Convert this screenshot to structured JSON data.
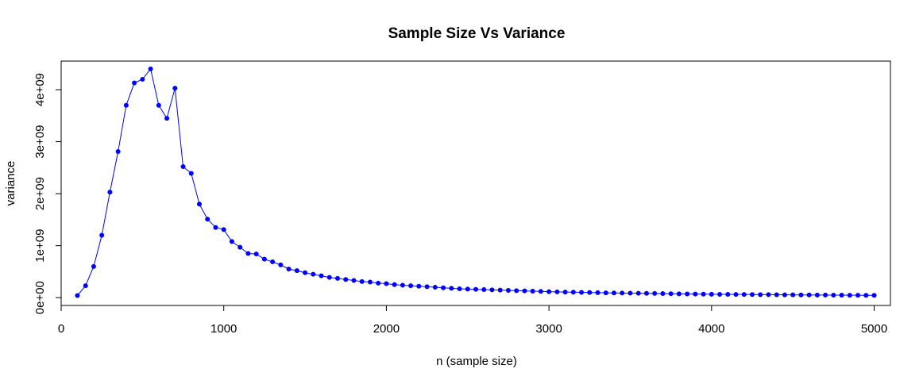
{
  "chart_data": {
    "type": "line",
    "title": "Sample Size Vs Variance",
    "xlabel": "n (sample size)",
    "ylabel": "variance",
    "xlim": [
      0,
      5100
    ],
    "ylim": [
      -150000000,
      4550000000
    ],
    "xticks": [
      0,
      1000,
      2000,
      3000,
      4000,
      5000
    ],
    "xtick_labels": [
      "0",
      "1000",
      "2000",
      "3000",
      "4000",
      "5000"
    ],
    "yticks": [
      0,
      1000000000,
      2000000000,
      3000000000,
      4000000000
    ],
    "ytick_labels": [
      "0e+00",
      "1e+09",
      "2e+09",
      "3e+09",
      "4e+09"
    ],
    "grid": false,
    "legend": "none",
    "series": [
      {
        "color": "#0000ff",
        "marker": "filled-circle",
        "x": [
          100,
          150,
          200,
          250,
          300,
          350,
          400,
          450,
          500,
          550,
          600,
          650,
          700,
          750,
          800,
          850,
          900,
          950,
          1000,
          1050,
          1100,
          1150,
          1200,
          1250,
          1300,
          1350,
          1400,
          1450,
          1500,
          1550,
          1600,
          1650,
          1700,
          1750,
          1800,
          1850,
          1900,
          1950,
          2000,
          2050,
          2100,
          2150,
          2200,
          2250,
          2300,
          2350,
          2400,
          2450,
          2500,
          2550,
          2600,
          2650,
          2700,
          2750,
          2800,
          2850,
          2900,
          2950,
          3000,
          3050,
          3100,
          3150,
          3200,
          3250,
          3300,
          3350,
          3400,
          3450,
          3500,
          3550,
          3600,
          3650,
          3700,
          3750,
          3800,
          3850,
          3900,
          3950,
          4000,
          4050,
          4100,
          4150,
          4200,
          4250,
          4300,
          4350,
          4400,
          4450,
          4500,
          4550,
          4600,
          4650,
          4700,
          4750,
          4800,
          4850,
          4900,
          4950,
          5000
        ],
        "y": [
          40000000,
          230000000,
          600000000,
          1200000000,
          2030000000,
          2810000000,
          3700000000,
          4130000000,
          4200000000,
          4400000000,
          3700000000,
          3450000000,
          4030000000,
          2520000000,
          2390000000,
          1800000000,
          1510000000,
          1350000000,
          1310000000,
          1080000000,
          970000000,
          850000000,
          840000000,
          740000000,
          690000000,
          630000000,
          550000000,
          520000000,
          480000000,
          450000000,
          420000000,
          390000000,
          370000000,
          350000000,
          330000000,
          310000000,
          300000000,
          280000000,
          270000000,
          250000000,
          240000000,
          230000000,
          220000000,
          210000000,
          200000000,
          190000000,
          180000000,
          170000000,
          165000000,
          160000000,
          155000000,
          150000000,
          145000000,
          140000000,
          135000000,
          130000000,
          125000000,
          120000000,
          115000000,
          112000000,
          108000000,
          105000000,
          102000000,
          99000000,
          96000000,
          93000000,
          90000000,
          88000000,
          86000000,
          84000000,
          82000000,
          80000000,
          78000000,
          76000000,
          74000000,
          72000000,
          70000000,
          68000000,
          66000000,
          64000000,
          63000000,
          62000000,
          61000000,
          60000000,
          58000000,
          57000000,
          56000000,
          55000000,
          54000000,
          53000000,
          52000000,
          51000000,
          50000000,
          49000000,
          48000000,
          47000000,
          46000000,
          45000000,
          44000000
        ]
      }
    ]
  }
}
